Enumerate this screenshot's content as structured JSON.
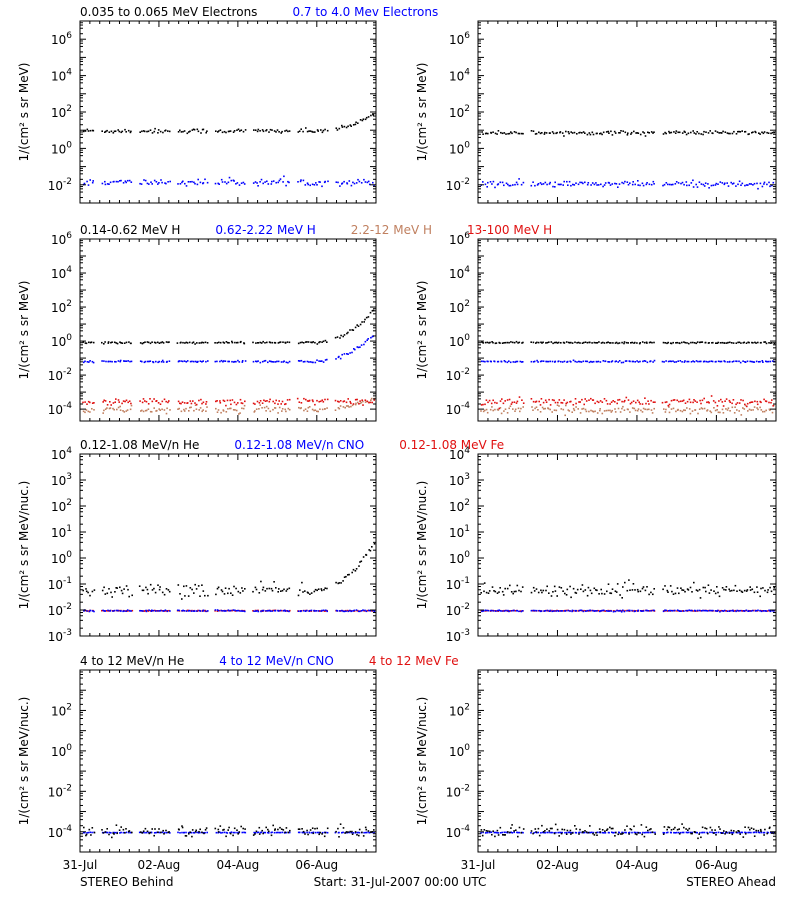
{
  "chart_data": [
    {
      "type": "scatter",
      "ylabel": "1/(cm² s sr MeV)",
      "yscale": "log",
      "ylim": [
        0.001,
        10000000
      ],
      "xlim": [
        "2007-07-31T00:00",
        "2007-08-07T12:00"
      ],
      "yticks": [
        {
          "base": "10",
          "exp": "-2"
        },
        {
          "base": "10",
          "exp": "0"
        },
        {
          "base": "10",
          "exp": "2"
        },
        {
          "base": "10",
          "exp": "4"
        },
        {
          "base": "10",
          "exp": "6"
        }
      ],
      "spacecraft": "STEREO Behind",
      "legend": [
        {
          "text": "0.035 to 0.065 MeV Electrons",
          "color": "#000000"
        },
        {
          "text": "0.7 to 4.0 Mev Electrons",
          "color": "#0000ff"
        }
      ],
      "series": [
        {
          "color": "#000000",
          "level": 10,
          "scatter": 0.18,
          "rise_end": 100
        },
        {
          "color": "#0000ff",
          "level": 0.015,
          "scatter": 0.25
        }
      ]
    },
    {
      "type": "scatter",
      "ylabel": "1/(cm² s sr MeV)",
      "yscale": "log",
      "ylim": [
        0.001,
        10000000
      ],
      "xlim": [
        "2007-07-31T00:00",
        "2007-08-07T12:00"
      ],
      "yticks": [
        {
          "base": "10",
          "exp": "-2"
        },
        {
          "base": "10",
          "exp": "0"
        },
        {
          "base": "10",
          "exp": "2"
        },
        {
          "base": "10",
          "exp": "4"
        },
        {
          "base": "10",
          "exp": "6"
        }
      ],
      "spacecraft": "STEREO Ahead",
      "series": [
        {
          "color": "#000000",
          "level": 8,
          "scatter": 0.15
        },
        {
          "color": "#0000ff",
          "level": 0.012,
          "scatter": 0.25
        }
      ]
    },
    {
      "type": "scatter",
      "ylabel": "1/(cm² s sr MeV)",
      "yscale": "log",
      "ylim": [
        2e-05,
        1000000
      ],
      "xlim": [
        "2007-07-31T00:00",
        "2007-08-07T12:00"
      ],
      "yticks": [
        {
          "base": "10",
          "exp": "-4"
        },
        {
          "base": "10",
          "exp": "-2"
        },
        {
          "base": "10",
          "exp": "0"
        },
        {
          "base": "10",
          "exp": "2"
        },
        {
          "base": "10",
          "exp": "4"
        },
        {
          "base": "10",
          "exp": "6"
        }
      ],
      "spacecraft": "STEREO Behind",
      "legend": [
        {
          "text": "0.14-0.62 MeV H",
          "color": "#000000"
        },
        {
          "text": "0.62-2.22 MeV H",
          "color": "#0000ff"
        },
        {
          "text": "2.2-12 MeV H",
          "color": "#c08060"
        },
        {
          "text": "13-100 MeV H",
          "color": "#e01010"
        }
      ],
      "series": [
        {
          "color": "#c08060",
          "level": 0.0001,
          "scatter": 0.3,
          "rise_end": 0.0005
        },
        {
          "color": "#e01010",
          "level": 0.0003,
          "scatter": 0.3
        },
        {
          "color": "#000000",
          "level": 0.9,
          "scatter": 0.08,
          "rise_end": 100
        },
        {
          "color": "#0000ff",
          "level": 0.07,
          "scatter": 0.08,
          "rise_end": 3
        }
      ]
    },
    {
      "type": "scatter",
      "ylabel": "1/(cm² s sr MeV)",
      "yscale": "log",
      "ylim": [
        2e-05,
        1000000
      ],
      "xlim": [
        "2007-07-31T00:00",
        "2007-08-07T12:00"
      ],
      "yticks": [
        {
          "base": "10",
          "exp": "-4"
        },
        {
          "base": "10",
          "exp": "-2"
        },
        {
          "base": "10",
          "exp": "0"
        },
        {
          "base": "10",
          "exp": "2"
        },
        {
          "base": "10",
          "exp": "4"
        },
        {
          "base": "10",
          "exp": "6"
        }
      ],
      "spacecraft": "STEREO Ahead",
      "series": [
        {
          "color": "#c08060",
          "level": 0.0001,
          "scatter": 0.3
        },
        {
          "color": "#e01010",
          "level": 0.0003,
          "scatter": 0.3
        },
        {
          "color": "#000000",
          "level": 0.9,
          "scatter": 0.06
        },
        {
          "color": "#0000ff",
          "level": 0.07,
          "scatter": 0.06
        }
      ]
    },
    {
      "type": "scatter",
      "ylabel": "1/(cm² s sr MeV/nuc.)",
      "yscale": "log",
      "ylim": [
        0.001,
        10000
      ],
      "xlim": [
        "2007-07-31T00:00",
        "2007-08-07T12:00"
      ],
      "yticks": [
        {
          "base": "10",
          "exp": "-3"
        },
        {
          "base": "10",
          "exp": "-2"
        },
        {
          "base": "10",
          "exp": "-1"
        },
        {
          "base": "10",
          "exp": "0"
        },
        {
          "base": "10",
          "exp": "1"
        },
        {
          "base": "10",
          "exp": "2"
        },
        {
          "base": "10",
          "exp": "3"
        },
        {
          "base": "10",
          "exp": "4"
        }
      ],
      "spacecraft": "STEREO Behind",
      "legend": [
        {
          "text": "0.12-1.08 MeV/n He",
          "color": "#000000"
        },
        {
          "text": "0.12-1.08 MeV/n CNO",
          "color": "#0000ff"
        },
        {
          "text": "0.12-1.08 MeV Fe",
          "color": "#e01010"
        }
      ],
      "series": [
        {
          "color": "#e01010",
          "level": 0.01,
          "scatter": 0.02
        },
        {
          "color": "#0000ff",
          "level": 0.01,
          "scatter": 0.04
        },
        {
          "color": "#000000",
          "level": 0.06,
          "scatter": 0.35,
          "rise_end": 5
        }
      ]
    },
    {
      "type": "scatter",
      "ylabel": "1/(cm² s sr MeV/nuc.)",
      "yscale": "log",
      "ylim": [
        0.001,
        10000
      ],
      "xlim": [
        "2007-07-31T00:00",
        "2007-08-07T12:00"
      ],
      "yticks": [
        {
          "base": "10",
          "exp": "-3"
        },
        {
          "base": "10",
          "exp": "-2"
        },
        {
          "base": "10",
          "exp": "-1"
        },
        {
          "base": "10",
          "exp": "0"
        },
        {
          "base": "10",
          "exp": "1"
        },
        {
          "base": "10",
          "exp": "2"
        },
        {
          "base": "10",
          "exp": "3"
        },
        {
          "base": "10",
          "exp": "4"
        }
      ],
      "spacecraft": "STEREO Ahead",
      "series": [
        {
          "color": "#e01010",
          "level": 0.01,
          "scatter": 0.02
        },
        {
          "color": "#0000ff",
          "level": 0.01,
          "scatter": 0.04
        },
        {
          "color": "#000000",
          "level": 0.06,
          "scatter": 0.3
        }
      ]
    },
    {
      "type": "scatter",
      "ylabel": "1/(cm² s sr MeV/nuc.)",
      "yscale": "log",
      "ylim": [
        1e-05,
        10000
      ],
      "xlim": [
        "2007-07-31T00:00",
        "2007-08-07T12:00"
      ],
      "yticks": [
        {
          "base": "10",
          "exp": "-4"
        },
        {
          "base": "10",
          "exp": "-2"
        },
        {
          "base": "10",
          "exp": "0"
        },
        {
          "base": "10",
          "exp": "2"
        }
      ],
      "spacecraft": "STEREO Behind",
      "legend": [
        {
          "text": "4 to 12 MeV/n He",
          "color": "#000000"
        },
        {
          "text": "4 to 12 MeV/n CNO",
          "color": "#0000ff"
        },
        {
          "text": "4 to 12 MeV Fe",
          "color": "#e01010"
        }
      ],
      "series": [
        {
          "color": "#0000ff",
          "level": 0.0001,
          "scatter": 0.02
        },
        {
          "color": "#000000",
          "level": 0.00012,
          "scatter": 0.4
        }
      ]
    },
    {
      "type": "scatter",
      "ylabel": "1/(cm² s sr MeV/nuc.)",
      "yscale": "log",
      "ylim": [
        1e-05,
        10000
      ],
      "xlim": [
        "2007-07-31T00:00",
        "2007-08-07T12:00"
      ],
      "yticks": [
        {
          "base": "10",
          "exp": "-4"
        },
        {
          "base": "10",
          "exp": "-2"
        },
        {
          "base": "10",
          "exp": "0"
        },
        {
          "base": "10",
          "exp": "2"
        }
      ],
      "spacecraft": "STEREO Ahead",
      "series": [
        {
          "color": "#0000ff",
          "level": 0.0001,
          "scatter": 0.02
        },
        {
          "color": "#000000",
          "level": 0.00012,
          "scatter": 0.4
        }
      ]
    }
  ],
  "xaxis": {
    "ticks": [
      {
        "label": "31-Jul",
        "t": "2007-07-31"
      },
      {
        "label": "02-Aug",
        "t": "2007-08-02"
      },
      {
        "label": "04-Aug",
        "t": "2007-08-04"
      },
      {
        "label": "06-Aug",
        "t": "2007-08-06"
      }
    ]
  },
  "footer": {
    "left": "STEREO Behind",
    "center": "Start: 31-Jul-2007 00:00 UTC",
    "right": "STEREO Ahead"
  }
}
